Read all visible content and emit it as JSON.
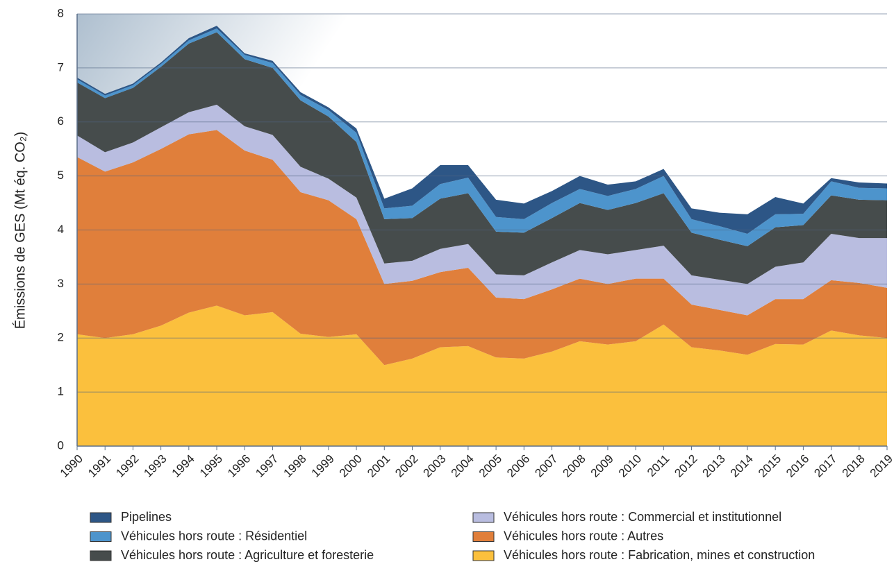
{
  "chart_data": {
    "type": "stacked-area",
    "y_label": "Émissions de GES (Mt éq. CO₂)",
    "categories": [
      "1990",
      "1991",
      "1992",
      "1993",
      "1994",
      "1995",
      "1996",
      "1997",
      "1998",
      "1999",
      "2000",
      "2001",
      "2002",
      "2003",
      "2004",
      "2005",
      "2006",
      "2007",
      "2008",
      "2009",
      "2010",
      "2011",
      "2012",
      "2013",
      "2014",
      "2015",
      "2016",
      "2017",
      "2018",
      "2019"
    ],
    "ylim": [
      0,
      8
    ],
    "yticks": [
      0,
      1,
      2,
      3,
      4,
      5,
      6,
      7,
      8
    ],
    "grid": true,
    "series": [
      {
        "name": "Pipelines",
        "color": "#2d5686",
        "values": [
          0.03,
          0.03,
          0.03,
          0.03,
          0.04,
          0.05,
          0.03,
          0.04,
          0.05,
          0.05,
          0.08,
          0.18,
          0.32,
          0.35,
          0.23,
          0.32,
          0.29,
          0.22,
          0.24,
          0.21,
          0.14,
          0.13,
          0.2,
          0.25,
          0.36,
          0.32,
          0.19,
          0.06,
          0.1,
          0.09
        ]
      },
      {
        "name": "Véhicules hors route : Résidentiel",
        "color": "#4d94cc",
        "values": [
          0.06,
          0.05,
          0.05,
          0.05,
          0.06,
          0.07,
          0.08,
          0.09,
          0.1,
          0.12,
          0.17,
          0.2,
          0.23,
          0.27,
          0.29,
          0.27,
          0.25,
          0.28,
          0.26,
          0.26,
          0.26,
          0.32,
          0.25,
          0.25,
          0.23,
          0.24,
          0.21,
          0.26,
          0.22,
          0.22
        ]
      },
      {
        "name": "Véhicules hors route : Agriculture et foresterie",
        "color": "#464c4c",
        "values": [
          0.98,
          1.0,
          1.01,
          1.12,
          1.27,
          1.34,
          1.24,
          1.24,
          1.23,
          1.15,
          1.03,
          0.82,
          0.79,
          0.93,
          0.94,
          0.79,
          0.79,
          0.82,
          0.87,
          0.82,
          0.87,
          0.97,
          0.79,
          0.74,
          0.7,
          0.73,
          0.69,
          0.71,
          0.71,
          0.7
        ]
      },
      {
        "name": "Véhicules hors route : Commercial et institutionnel",
        "color": "#b9bde0",
        "values": [
          0.4,
          0.36,
          0.37,
          0.4,
          0.41,
          0.47,
          0.45,
          0.46,
          0.47,
          0.4,
          0.4,
          0.38,
          0.37,
          0.43,
          0.44,
          0.43,
          0.44,
          0.5,
          0.53,
          0.55,
          0.53,
          0.61,
          0.54,
          0.56,
          0.58,
          0.6,
          0.68,
          0.86,
          0.83,
          0.92
        ]
      },
      {
        "name": "Véhicules hors route : Autres",
        "color": "#e07f3b",
        "values": [
          3.28,
          3.08,
          3.18,
          3.27,
          3.3,
          3.25,
          3.05,
          2.82,
          2.62,
          2.53,
          2.13,
          1.5,
          1.44,
          1.39,
          1.45,
          1.11,
          1.1,
          1.15,
          1.16,
          1.12,
          1.16,
          0.85,
          0.79,
          0.75,
          0.73,
          0.83,
          0.84,
          0.93,
          0.97,
          0.93
        ]
      },
      {
        "name": "Véhicules hors route : Fabrication, mines et construction",
        "color": "#fbc03d",
        "values": [
          2.07,
          2.0,
          2.07,
          2.23,
          2.47,
          2.6,
          2.42,
          2.48,
          2.08,
          2.02,
          2.07,
          1.5,
          1.62,
          1.83,
          1.85,
          1.64,
          1.62,
          1.75,
          1.94,
          1.88,
          1.94,
          2.25,
          1.83,
          1.77,
          1.69,
          1.89,
          1.88,
          2.14,
          2.05,
          2.0
        ]
      }
    ]
  }
}
